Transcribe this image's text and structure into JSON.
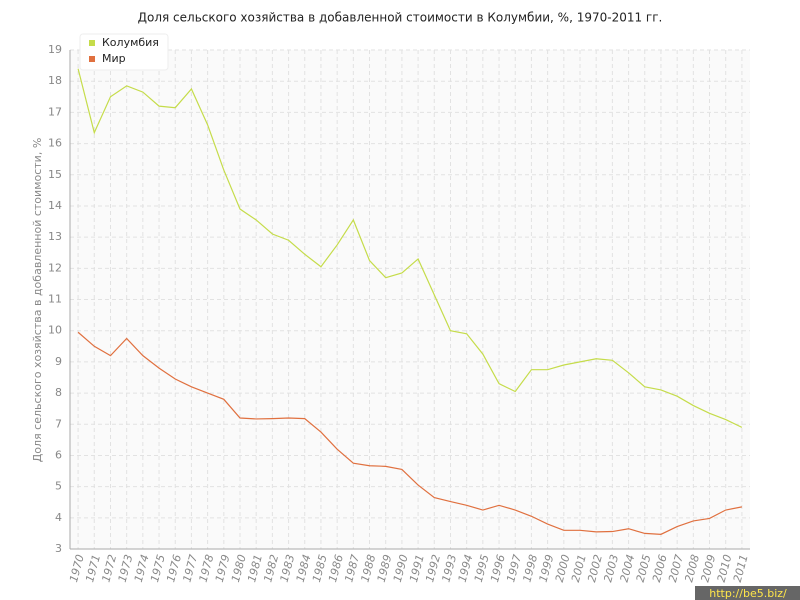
{
  "chart_data": {
    "type": "line",
    "title": "Доля сельского хозяйства в добавленной стоимости в Колумбии, %, 1970-2011 гг.",
    "y_label": "Доля сельского хозяйства в добавленной стоимости, %",
    "x": [
      1970,
      1971,
      1972,
      1973,
      1974,
      1975,
      1976,
      1977,
      1978,
      1979,
      1980,
      1981,
      1982,
      1983,
      1984,
      1985,
      1986,
      1987,
      1988,
      1989,
      1990,
      1991,
      1992,
      1993,
      1994,
      1995,
      1996,
      1997,
      1998,
      1999,
      2000,
      2001,
      2002,
      2003,
      2004,
      2005,
      2006,
      2007,
      2008,
      2009,
      2010,
      2011
    ],
    "series": [
      {
        "name": "Колумбия",
        "color": "#c5dc4a",
        "values": [
          18.4,
          16.35,
          17.5,
          17.85,
          17.65,
          17.2,
          17.15,
          17.75,
          16.6,
          15.15,
          13.9,
          13.55,
          13.1,
          12.9,
          12.45,
          12.05,
          12.75,
          13.55,
          12.25,
          11.7,
          11.85,
          12.3,
          11.15,
          10.0,
          9.9,
          9.25,
          8.3,
          8.05,
          8.75,
          8.75,
          8.9,
          9.0,
          9.1,
          9.05,
          8.65,
          8.2,
          8.1,
          7.9,
          7.6,
          7.35,
          7.15,
          6.9
        ]
      },
      {
        "name": "Мир",
        "color": "#e0703f",
        "values": [
          9.95,
          9.5,
          9.2,
          9.75,
          9.2,
          8.8,
          8.45,
          8.2,
          8.0,
          7.8,
          7.2,
          7.17,
          7.18,
          7.2,
          7.18,
          6.75,
          6.2,
          5.75,
          5.67,
          5.65,
          5.55,
          5.05,
          4.65,
          4.52,
          4.4,
          4.25,
          4.4,
          4.25,
          4.05,
          3.8,
          3.6,
          3.6,
          3.55,
          3.56,
          3.65,
          3.5,
          3.47,
          3.72,
          3.9,
          3.98,
          4.25,
          4.35
        ]
      }
    ],
    "xlim": [
      1969.5,
      2011.5
    ],
    "xticks": [
      1970,
      1971,
      1972,
      1973,
      1974,
      1975,
      1976,
      1977,
      1978,
      1979,
      1980,
      1981,
      1982,
      1983,
      1984,
      1985,
      1986,
      1987,
      1988,
      1989,
      1990,
      1991,
      1992,
      1993,
      1994,
      1995,
      1996,
      1997,
      1998,
      1999,
      2000,
      2001,
      2002,
      2003,
      2004,
      2005,
      2006,
      2007,
      2008,
      2009,
      2010,
      2011
    ],
    "ylim": [
      3,
      19
    ],
    "yticks": [
      3,
      4,
      5,
      6,
      7,
      8,
      9,
      10,
      11,
      12,
      13,
      14,
      15,
      16,
      17,
      18,
      19
    ],
    "grid": true,
    "legend": "top-left",
    "watermark": "http://be5.biz/"
  }
}
